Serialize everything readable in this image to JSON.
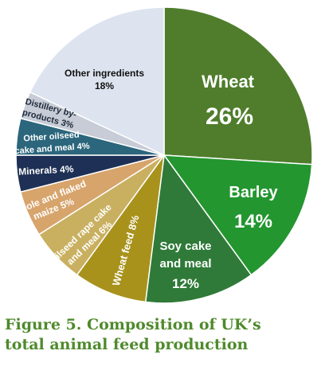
{
  "chart_data": {
    "type": "pie",
    "slices": [
      {
        "name": "Wheat",
        "value": 26,
        "pct_label": "26%",
        "color": "#4f7d2c"
      },
      {
        "name": "Barley",
        "value": 14,
        "pct_label": "14%",
        "color": "#23962f"
      },
      {
        "name": "Soy cake and meal",
        "value": 12,
        "pct_label": "12%",
        "color": "#2f7a38"
      },
      {
        "name": "Wheat feed",
        "value": 8,
        "pct_label": "8%",
        "color": "#a8921c"
      },
      {
        "name": "Oilseed rape cake and meal",
        "value": 6,
        "pct_label": "6%",
        "color": "#c9b060"
      },
      {
        "name": "Whole and flaked maize",
        "value": 5,
        "pct_label": "5%",
        "color": "#d7a46c"
      },
      {
        "name": "Minerals",
        "value": 4,
        "pct_label": "4%",
        "color": "#1e3055"
      },
      {
        "name": "Other oilseed cake and meal",
        "value": 4,
        "pct_label": "4%",
        "color": "#2b667c"
      },
      {
        "name": "Distillery by-products",
        "value": 3,
        "pct_label": "3%",
        "color": "#c7ccd6"
      },
      {
        "name": "Other ingredients",
        "value": 18,
        "pct_label": "18%",
        "color": "#dde4ef"
      }
    ]
  },
  "labels": {
    "wheat_name": "Wheat",
    "wheat_pct": "26%",
    "barley_name": "Barley",
    "barley_pct": "14%",
    "soy_line1": "Soy cake",
    "soy_line2": "and meal",
    "soy_pct": "12%",
    "wheatfeed": "Wheat feed 8%",
    "oilseed_line1": "Oilseed rape cake",
    "oilseed_line2": "and  meal 6%",
    "maize_line1": "Whole and flaked",
    "maize_line2": "maize 5%",
    "minerals": "Minerals 4%",
    "other_oil_line1": "Other oilseed",
    "other_oil_line2": "cake and meal 4%",
    "distillery_line1": "Distillery by-",
    "distillery_line2": "products 3%",
    "other_line1": "Other ingredients",
    "other_line2": "18%"
  },
  "caption": {
    "line1": "Figure 5. Composition of UK’s",
    "line2": "total animal feed production"
  }
}
